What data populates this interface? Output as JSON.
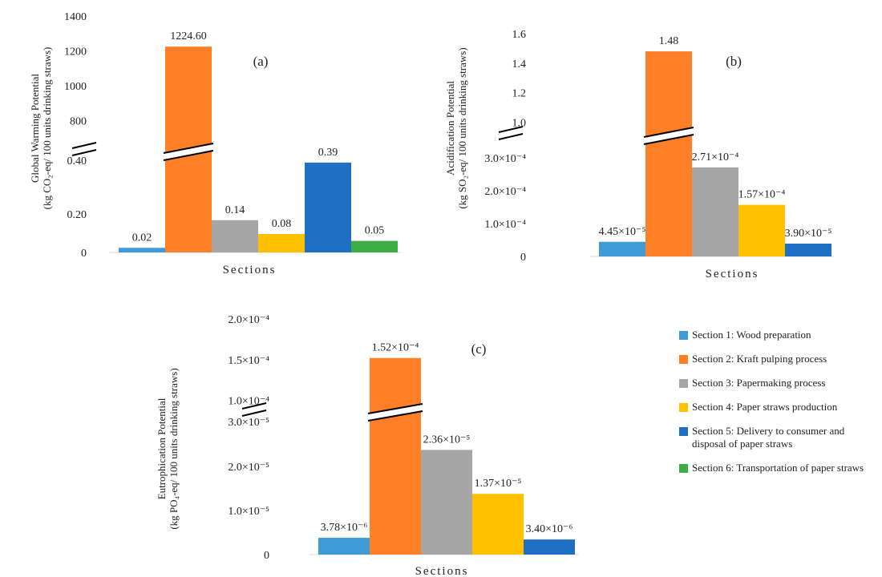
{
  "colors": {
    "s1": "#3e9bd6",
    "s2": "#ff7f27",
    "s3": "#a6a6a6",
    "s4": "#ffc000",
    "s5": "#1f6fc4",
    "s6": "#3fad46"
  },
  "legend": [
    {
      "key": "s1",
      "label": "Section 1: Wood preparation"
    },
    {
      "key": "s2",
      "label": "Section 2: Kraft pulping process"
    },
    {
      "key": "s3",
      "label": "Section 3: Papermaking process"
    },
    {
      "key": "s4",
      "label": "Section 4: Paper straws production"
    },
    {
      "key": "s5",
      "label": "Section 5: Delivery to consumer and disposal of paper straws"
    },
    {
      "key": "s6",
      "label": "Section 6: Transportation of paper straws"
    }
  ],
  "chart_data": [
    {
      "type": "bar",
      "panel": "(a)",
      "xlabel": "Sections",
      "ylabel_line1": "Global Warming Potential",
      "ylabel_line2": "(kg CO₂-eq/ 100 units drinking straws)",
      "axis_break": "between 0.40 and 800",
      "y_ticks_lower": [
        "0",
        "0.20",
        "0.40"
      ],
      "y_ticks_upper": [
        "800",
        "1000",
        "1200",
        "1400"
      ],
      "categories": [
        "Section 1",
        "Section 2",
        "Section 3",
        "Section 4",
        "Section 5",
        "Section 6"
      ],
      "values": [
        0.02,
        1224.6,
        0.14,
        0.08,
        0.39,
        0.05
      ],
      "labels": [
        "0.02",
        "1224.60",
        "0.14",
        "0.08",
        "0.39",
        "0.05"
      ]
    },
    {
      "type": "bar",
      "panel": "(b)",
      "xlabel": "Sections",
      "ylabel_line1": "Acidification Potential",
      "ylabel_line2": "(kg SO₂-eq/ 100 units drinking straws)",
      "axis_break": "between 3.0×10⁻⁴ and 1.0",
      "y_ticks_lower": [
        "0",
        "1.0×10⁻⁴",
        "2.0×10⁻⁴",
        "3.0×10⁻⁴"
      ],
      "y_ticks_upper": [
        "1.0",
        "1.2",
        "1.4",
        "1.6"
      ],
      "categories": [
        "Section 1",
        "Section 2",
        "Section 3",
        "Section 4",
        "Section 5"
      ],
      "values": [
        4.45e-05,
        1.48,
        0.000271,
        0.000157,
        3.9e-05
      ],
      "labels": [
        "4.45×10⁻⁵",
        "1.48",
        "2.71×10⁻⁴",
        "1.57×10⁻⁴",
        "3.90×10⁻⁵"
      ]
    },
    {
      "type": "bar",
      "panel": "(c)",
      "xlabel": "Sections",
      "ylabel_line1": "Eutrophication Potential",
      "ylabel_line2": "(kg PO₄-eq/ 100 units drinking straws)",
      "axis_break": "between 3.0×10⁻⁵ and 1.0×10⁻⁴",
      "y_ticks_lower": [
        "0",
        "1.0×10⁻⁵",
        "2.0×10⁻⁵",
        "3.0×10⁻⁵"
      ],
      "y_ticks_upper": [
        "1.0×10⁻⁴",
        "1.5×10⁻⁴",
        "2.0×10⁻⁴"
      ],
      "categories": [
        "Section 1",
        "Section 2",
        "Section 3",
        "Section 4",
        "Section 5"
      ],
      "values": [
        3.78e-06,
        0.000152,
        2.36e-05,
        1.37e-05,
        3.4e-06
      ],
      "labels": [
        "3.78×10⁻⁶",
        "1.52×10⁻⁴",
        "2.36×10⁻⁵",
        "1.37×10⁻⁵",
        "3.40×10⁻⁶"
      ]
    }
  ]
}
